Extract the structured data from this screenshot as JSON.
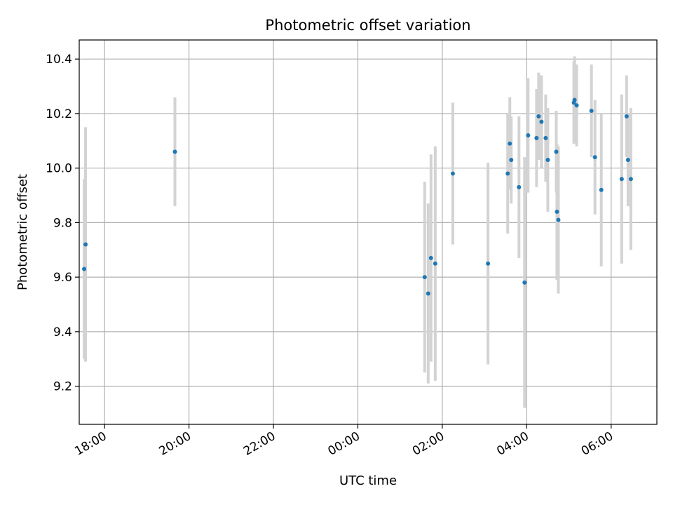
{
  "chart_data": {
    "type": "scatter",
    "title": "Photometric offset variation",
    "xlabel": "UTC time",
    "ylabel": "Photometric offset",
    "x_axis": "time",
    "xlim": [
      "17:24",
      "07:05"
    ],
    "ylim": [
      9.06,
      10.47
    ],
    "x_ticks": [
      "18:00",
      "20:00",
      "22:00",
      "00:00",
      "02:00",
      "04:00",
      "06:00"
    ],
    "y_ticks": [
      9.2,
      9.4,
      9.6,
      9.8,
      10.0,
      10.2,
      10.4
    ],
    "grid": true,
    "point_color": "#1f77b4",
    "errorbar_color": "#d3d3d3",
    "points": [
      {
        "x": "17:31",
        "y": 9.63,
        "err": 0.33
      },
      {
        "x": "17:33",
        "y": 9.72,
        "err": 0.43
      },
      {
        "x": "19:40",
        "y": 10.06,
        "err": 0.2
      },
      {
        "x": "01:35",
        "y": 9.6,
        "err": 0.35
      },
      {
        "x": "01:40",
        "y": 9.54,
        "err": 0.33
      },
      {
        "x": "01:44",
        "y": 9.67,
        "err": 0.38
      },
      {
        "x": "01:50",
        "y": 9.65,
        "err": 0.43
      },
      {
        "x": "02:15",
        "y": 9.98,
        "err": 0.26
      },
      {
        "x": "03:05",
        "y": 9.65,
        "err": 0.37
      },
      {
        "x": "03:33",
        "y": 9.98,
        "err": 0.22
      },
      {
        "x": "03:36",
        "y": 10.09,
        "err": 0.17
      },
      {
        "x": "03:38",
        "y": 10.03,
        "err": 0.16
      },
      {
        "x": "03:49",
        "y": 9.93,
        "err": 0.26
      },
      {
        "x": "03:57",
        "y": 9.58,
        "err": 0.46
      },
      {
        "x": "04:02",
        "y": 10.12,
        "err": 0.21
      },
      {
        "x": "04:14",
        "y": 10.11,
        "err": 0.18
      },
      {
        "x": "04:17",
        "y": 10.19,
        "err": 0.16
      },
      {
        "x": "04:21",
        "y": 10.17,
        "err": 0.17
      },
      {
        "x": "04:27",
        "y": 10.11,
        "err": 0.16
      },
      {
        "x": "04:30",
        "y": 10.03,
        "err": 0.19
      },
      {
        "x": "04:42",
        "y": 10.06,
        "err": 0.15
      },
      {
        "x": "04:43",
        "y": 9.84,
        "err": 0.25
      },
      {
        "x": "04:45",
        "y": 9.81,
        "err": 0.27
      },
      {
        "x": "05:07",
        "y": 10.24,
        "err": 0.15
      },
      {
        "x": "05:08",
        "y": 10.25,
        "err": 0.16
      },
      {
        "x": "05:11",
        "y": 10.23,
        "err": 0.15
      },
      {
        "x": "05:32",
        "y": 10.21,
        "err": 0.17
      },
      {
        "x": "05:37",
        "y": 10.04,
        "err": 0.21
      },
      {
        "x": "05:46",
        "y": 9.92,
        "err": 0.28
      },
      {
        "x": "06:15",
        "y": 9.96,
        "err": 0.31
      },
      {
        "x": "06:22",
        "y": 10.19,
        "err": 0.15
      },
      {
        "x": "06:24",
        "y": 10.03,
        "err": 0.17
      },
      {
        "x": "06:28",
        "y": 9.96,
        "err": 0.26
      }
    ]
  }
}
